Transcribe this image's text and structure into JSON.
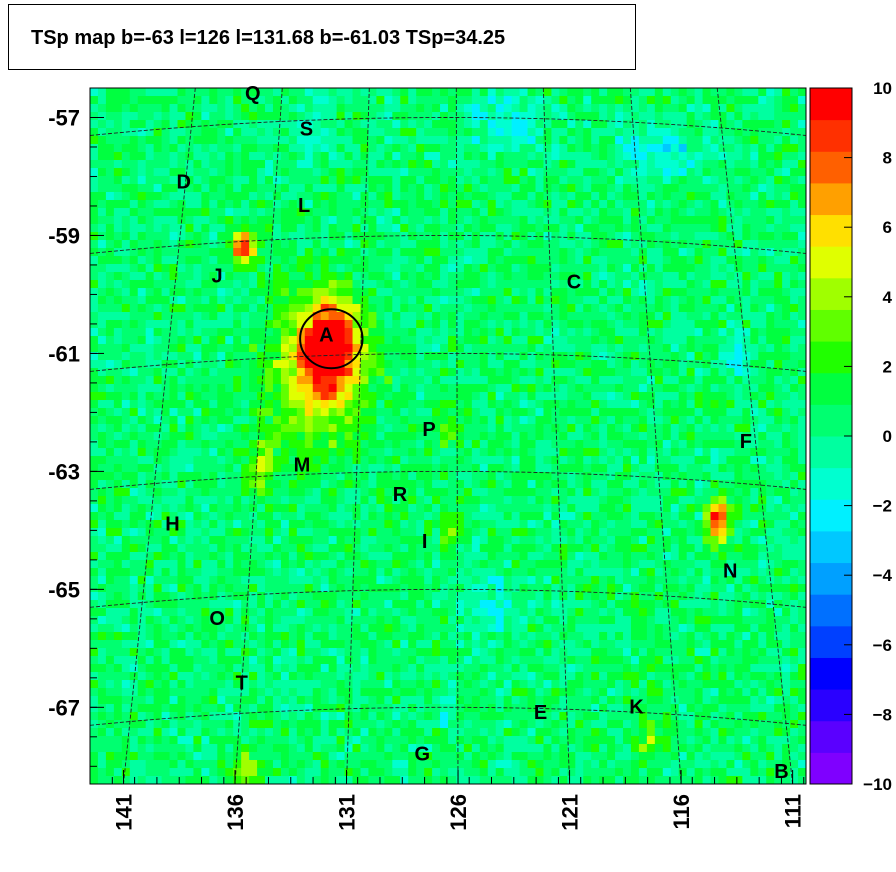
{
  "title": "TSp map b=-63 l=126 l=131.68 b=-61.03 TSp=34.25",
  "chart_data": {
    "type": "heatmap",
    "title": "TSp map b=-63 l=126 l=131.68 b=-61.03 TSp=34.25",
    "xlabel": "",
    "ylabel": "",
    "xlim": [
      142.5,
      110.4
    ],
    "ylim": [
      -68.3,
      -56.5
    ],
    "x_ticks": [
      "141",
      "136",
      "131",
      "126",
      "121",
      "116",
      "111"
    ],
    "x_tick_values": [
      141,
      136,
      131,
      126,
      121,
      116,
      111
    ],
    "y_ticks": [
      "-57",
      "-59",
      "-61",
      "-63",
      "-65",
      "-67"
    ],
    "y_tick_values": [
      -57,
      -59,
      -61,
      -63,
      -65,
      -67
    ],
    "colorbar": {
      "min": -10,
      "max": 10,
      "labels": [
        "10",
        "8",
        "6",
        "4",
        "2",
        "0",
        "−2",
        "−4",
        "−6",
        "−8",
        "−10"
      ],
      "label_values": [
        10,
        8,
        6,
        4,
        2,
        0,
        -2,
        -4,
        -6,
        -8,
        -10
      ],
      "colors": [
        "#7f00ff",
        "#5a00ff",
        "#2a00ff",
        "#0000ff",
        "#0040ff",
        "#0070ff",
        "#00a0ff",
        "#00c8ff",
        "#00f0ff",
        "#00ffd0",
        "#00ffa0",
        "#00ff70",
        "#00ff40",
        "#20ff00",
        "#60ff00",
        "#a0ff00",
        "#e0ff00",
        "#ffe000",
        "#ffa000",
        "#ff6000",
        "#ff3000",
        "#ff0000"
      ]
    },
    "background_value": 0.5,
    "hotspots": [
      {
        "l": 131.7,
        "b": -60.9,
        "value": 10,
        "sigma_l": 0.9,
        "sigma_b": 0.55
      },
      {
        "l": 132.5,
        "b": -61.4,
        "value": 4,
        "sigma_l": 1.6,
        "sigma_b": 0.9
      },
      {
        "l": 135.6,
        "b": -59.2,
        "value": 9,
        "sigma_l": 0.35,
        "sigma_b": 0.2
      },
      {
        "l": 114.3,
        "b": -63.8,
        "value": 9,
        "sigma_l": 0.35,
        "sigma_b": 0.25
      },
      {
        "l": 134.8,
        "b": -62.9,
        "value": 3.5,
        "sigma_l": 0.4,
        "sigma_b": 0.3
      },
      {
        "l": 126.3,
        "b": -64.0,
        "value": 2.5,
        "sigma_l": 0.4,
        "sigma_b": 0.3
      },
      {
        "l": 126.5,
        "b": -62.2,
        "value": 2,
        "sigma_l": 0.4,
        "sigma_b": 0.3
      },
      {
        "l": 135.5,
        "b": -68.1,
        "value": 3,
        "sigma_l": 0.5,
        "sigma_b": 0.3
      },
      {
        "l": 117.5,
        "b": -67.6,
        "value": 2.5,
        "sigma_l": 0.5,
        "sigma_b": 0.3
      }
    ],
    "coldspots": [
      {
        "l": 113.5,
        "b": -61.1,
        "value": -4,
        "sigma_l": 0.35,
        "sigma_b": 0.2
      },
      {
        "l": 117.0,
        "b": -57.6,
        "value": -2.5,
        "sigma_l": 1.4,
        "sigma_b": 0.3
      },
      {
        "l": 123.8,
        "b": -57.1,
        "value": -2.5,
        "sigma_l": 1.2,
        "sigma_b": 0.3
      },
      {
        "l": 132.4,
        "b": -57.3,
        "value": -2,
        "sigma_l": 0.6,
        "sigma_b": 0.3
      },
      {
        "l": 124.5,
        "b": -65.3,
        "value": -2,
        "sigma_l": 0.8,
        "sigma_b": 0.4
      },
      {
        "l": 126.5,
        "b": -67.0,
        "value": -2.5,
        "sigma_l": 0.3,
        "sigma_b": 0.2
      }
    ],
    "circle": {
      "l": 131.68,
      "b": -60.75,
      "radius_l": 1.4,
      "radius_b": 0.5
    },
    "sources": [
      {
        "label": "Q",
        "l": 135.2,
        "b": -56.6
      },
      {
        "label": "S",
        "l": 132.8,
        "b": -57.2
      },
      {
        "label": "D",
        "l": 138.3,
        "b": -58.1
      },
      {
        "label": "L",
        "l": 132.9,
        "b": -58.5
      },
      {
        "label": "J",
        "l": 136.8,
        "b": -59.7
      },
      {
        "label": "C",
        "l": 120.8,
        "b": -59.8
      },
      {
        "label": "A",
        "l": 131.9,
        "b": -60.7
      },
      {
        "label": "P",
        "l": 127.3,
        "b": -62.3
      },
      {
        "label": "F",
        "l": 113.1,
        "b": -62.5
      },
      {
        "label": "M",
        "l": 133.0,
        "b": -62.9
      },
      {
        "label": "R",
        "l": 128.6,
        "b": -63.4
      },
      {
        "label": "H",
        "l": 138.8,
        "b": -63.9
      },
      {
        "label": "I",
        "l": 127.5,
        "b": -64.2
      },
      {
        "label": "N",
        "l": 113.8,
        "b": -64.7
      },
      {
        "label": "O",
        "l": 136.8,
        "b": -65.5
      },
      {
        "label": "T",
        "l": 135.7,
        "b": -66.6
      },
      {
        "label": "E",
        "l": 122.3,
        "b": -67.1
      },
      {
        "label": "K",
        "l": 118.0,
        "b": -67.0
      },
      {
        "label": "G",
        "l": 127.6,
        "b": -67.8
      },
      {
        "label": "B",
        "l": 111.5,
        "b": -68.1
      }
    ]
  }
}
